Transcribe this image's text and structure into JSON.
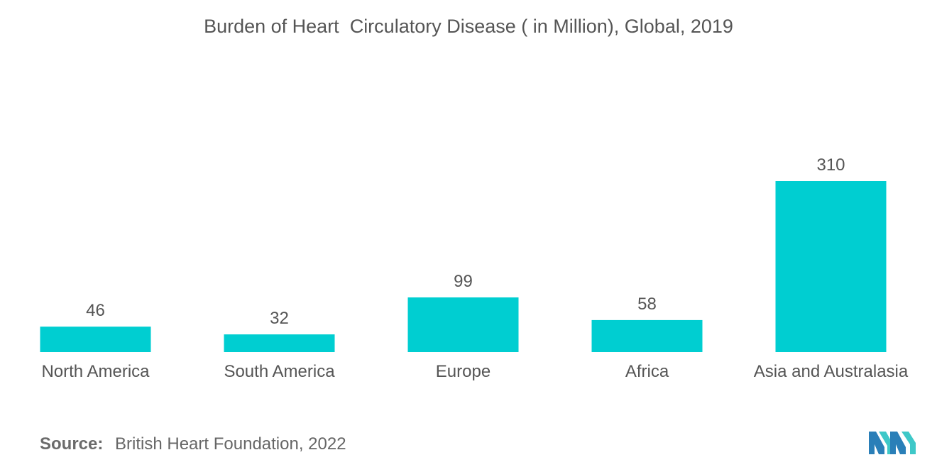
{
  "chart_data": {
    "type": "bar",
    "title": "Burden of Heart  Circulatory Disease ( in Million), Global, 2019",
    "xlabel": "",
    "ylabel": "",
    "categories": [
      "North America",
      "South America",
      "Europe",
      "Africa",
      "Asia and Australasia"
    ],
    "values": [
      46,
      32,
      99,
      58,
      310
    ],
    "data_labels": [
      "46",
      "32",
      "99",
      "58",
      "310"
    ],
    "ylim": [
      0,
      310
    ],
    "grid": false,
    "legend": "none",
    "bar_color": "#00ced1",
    "label_color": "#555555"
  },
  "footer": {
    "source_label": "Source:",
    "source_text": "British Heart Foundation, 2022"
  },
  "logo": {
    "icon": "mordor-intelligence-logo",
    "colors": [
      "#2a7fb8",
      "#3ec8c8"
    ]
  }
}
